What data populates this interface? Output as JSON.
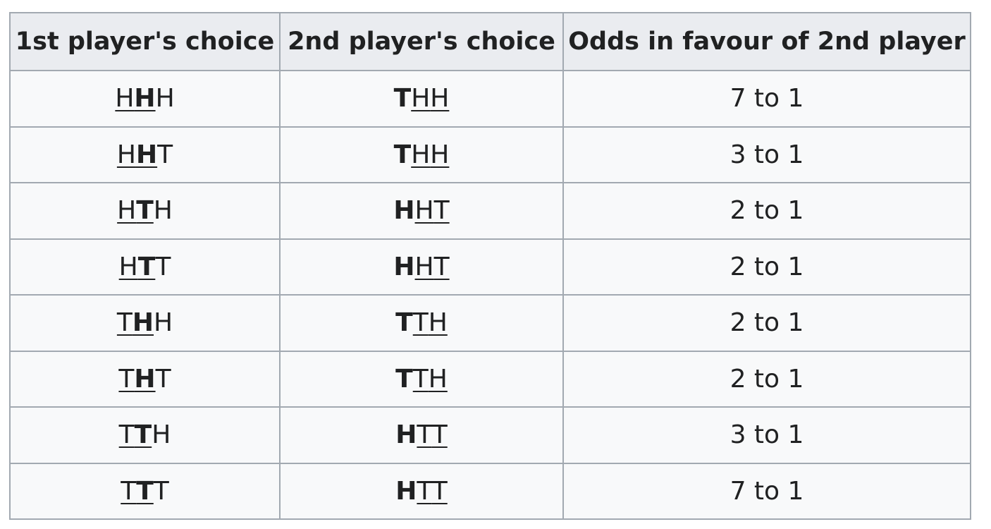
{
  "table": {
    "headers": [
      "1st player's choice",
      "2nd player's choice",
      "Odds in favour of 2nd player"
    ],
    "rows": [
      {
        "first": [
          "H",
          "H",
          "H"
        ],
        "second": [
          "T",
          "H",
          "H"
        ],
        "odds": "7 to 1"
      },
      {
        "first": [
          "H",
          "H",
          "T"
        ],
        "second": [
          "T",
          "H",
          "H"
        ],
        "odds": "3 to 1"
      },
      {
        "first": [
          "H",
          "T",
          "H"
        ],
        "second": [
          "H",
          "H",
          "T"
        ],
        "odds": "2 to 1"
      },
      {
        "first": [
          "H",
          "T",
          "T"
        ],
        "second": [
          "H",
          "H",
          "T"
        ],
        "odds": "2 to 1"
      },
      {
        "first": [
          "T",
          "H",
          "H"
        ],
        "second": [
          "T",
          "T",
          "H"
        ],
        "odds": "2 to 1"
      },
      {
        "first": [
          "T",
          "H",
          "T"
        ],
        "second": [
          "T",
          "T",
          "H"
        ],
        "odds": "2 to 1"
      },
      {
        "first": [
          "T",
          "T",
          "H"
        ],
        "second": [
          "H",
          "T",
          "T"
        ],
        "odds": "3 to 1"
      },
      {
        "first": [
          "T",
          "T",
          "T"
        ],
        "second": [
          "H",
          "T",
          "T"
        ],
        "odds": "7 to 1"
      }
    ]
  }
}
